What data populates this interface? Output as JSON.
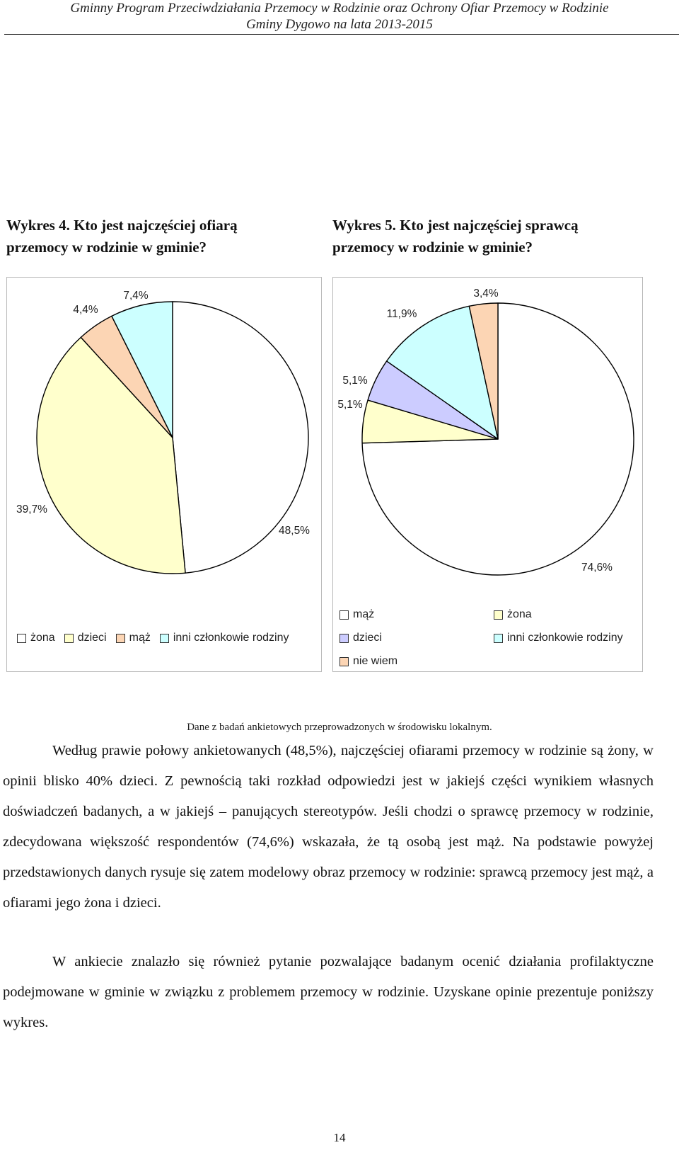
{
  "header": {
    "line1": "Gminny Program Przeciwdziałania Przemocy w Rodzinie oraz Ochrony Ofiar Przemocy w Rodzinie",
    "line2": "Gminy Dygowo na lata 2013-2015"
  },
  "chart4_caption": {
    "line1": "Wykres 4. Kto jest najczęściej ofiarą",
    "line2": "przemocy w rodzinie w gminie?"
  },
  "chart5_caption": {
    "line1": "Wykres 5. Kto jest najczęściej sprawcą",
    "line2": "przemocy w rodzinie w gminie?"
  },
  "chart_data": [
    {
      "type": "pie",
      "title": "Wykres 4. Kto jest najczęściej ofiarą przemocy w rodzinie w gminie?",
      "categories": [
        "żona",
        "dzieci",
        "mąż",
        "inni członkowie rodziny"
      ],
      "values": [
        48.5,
        39.7,
        4.4,
        7.4
      ],
      "value_labels": [
        "48,5%",
        "39,7%",
        "4,4%",
        "7,4%"
      ],
      "colors": [
        "#ffffff",
        "#ffffcc",
        "#fcd5b4",
        "#ccffff"
      ],
      "legend_position": "bottom"
    },
    {
      "type": "pie",
      "title": "Wykres 5. Kto jest najczęściej sprawcą przemocy w rodzinie w gminie?",
      "categories": [
        "mąż",
        "żona",
        "dzieci",
        "inni członkowie rodziny",
        "nie wiem"
      ],
      "values": [
        74.6,
        5.1,
        5.1,
        11.9,
        3.4
      ],
      "value_labels": [
        "74,6%",
        "5,1%",
        "5,1%",
        "11,9%",
        "3,4%"
      ],
      "colors": [
        "#ffffff",
        "#ffffcc",
        "#ccccff",
        "#ccffff",
        "#fcd5b4"
      ],
      "legend_position": "bottom"
    }
  ],
  "source_note": "Dane z badań ankietowych przeprowadzonych w środowisku lokalnym.",
  "paragraph1": "Według prawie połowy ankietowanych (48,5%), najczęściej ofiarami przemocy w rodzinie są żony, w opinii blisko 40% dzieci. Z pewnością taki rozkład odpowiedzi jest w jakiejś części wynikiem własnych doświadczeń badanych, a w jakiejś – panujących stereotypów. Jeśli chodzi o sprawcę przemocy w rodzinie, zdecydowana większość respondentów (74,6%) wskazała, że tą osobą jest mąż. Na podstawie powyżej przedstawionych danych rysuje się zatem modelowy obraz przemocy w rodzinie: sprawcą przemocy jest mąż, a ofiarami jego żona i dzieci.",
  "paragraph2": "W ankiecie znalazło się również pytanie pozwalające badanym ocenić działania profilaktyczne podejmowane w gminie w związku z problemem przemocy w rodzinie. Uzyskane opinie prezentuje poniższy wykres.",
  "page_number": "14"
}
